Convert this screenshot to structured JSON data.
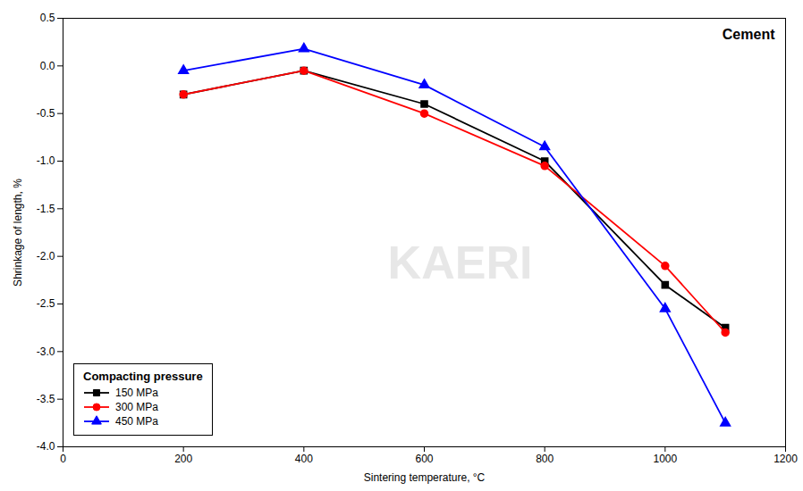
{
  "chart_data": {
    "type": "line",
    "title": "Cement",
    "xlabel": "Sintering temperature, °C",
    "ylabel": "Shrinkage of length, %",
    "annotations": [
      "KAERI"
    ],
    "x": [
      200,
      400,
      600,
      800,
      1000,
      1100
    ],
    "series": [
      {
        "name": "150 MPa",
        "color": "black",
        "marker": "square",
        "values": [
          -0.3,
          -0.05,
          -0.4,
          -1.0,
          -2.3,
          -2.75
        ]
      },
      {
        "name": "300 MPa",
        "color": "red",
        "marker": "circle",
        "values": [
          -0.3,
          -0.05,
          -0.5,
          -1.05,
          -2.1,
          -2.8
        ]
      },
      {
        "name": "450 MPa",
        "color": "blue",
        "marker": "triangle",
        "values": [
          -0.05,
          0.18,
          -0.2,
          -0.85,
          -2.55,
          -3.75
        ]
      }
    ],
    "legend_title": "Compacting pressure",
    "legend": "lower left",
    "grid": false,
    "xlim": [
      0,
      1200
    ],
    "ylim": [
      -4.0,
      0.5
    ],
    "xticks": [
      0,
      200,
      400,
      600,
      800,
      1000,
      1200
    ],
    "yticks": [
      0.5,
      {
        "value": 0,
        "label": "0.0"
      },
      -0.5,
      {
        "value": -1,
        "label": "-1.0"
      },
      -1.5,
      {
        "value": -2,
        "label": "-2.0"
      },
      -2.5,
      {
        "value": -3,
        "label": "-3.0"
      },
      -3.5,
      {
        "value": -4,
        "label": "-4.0"
      }
    ]
  }
}
